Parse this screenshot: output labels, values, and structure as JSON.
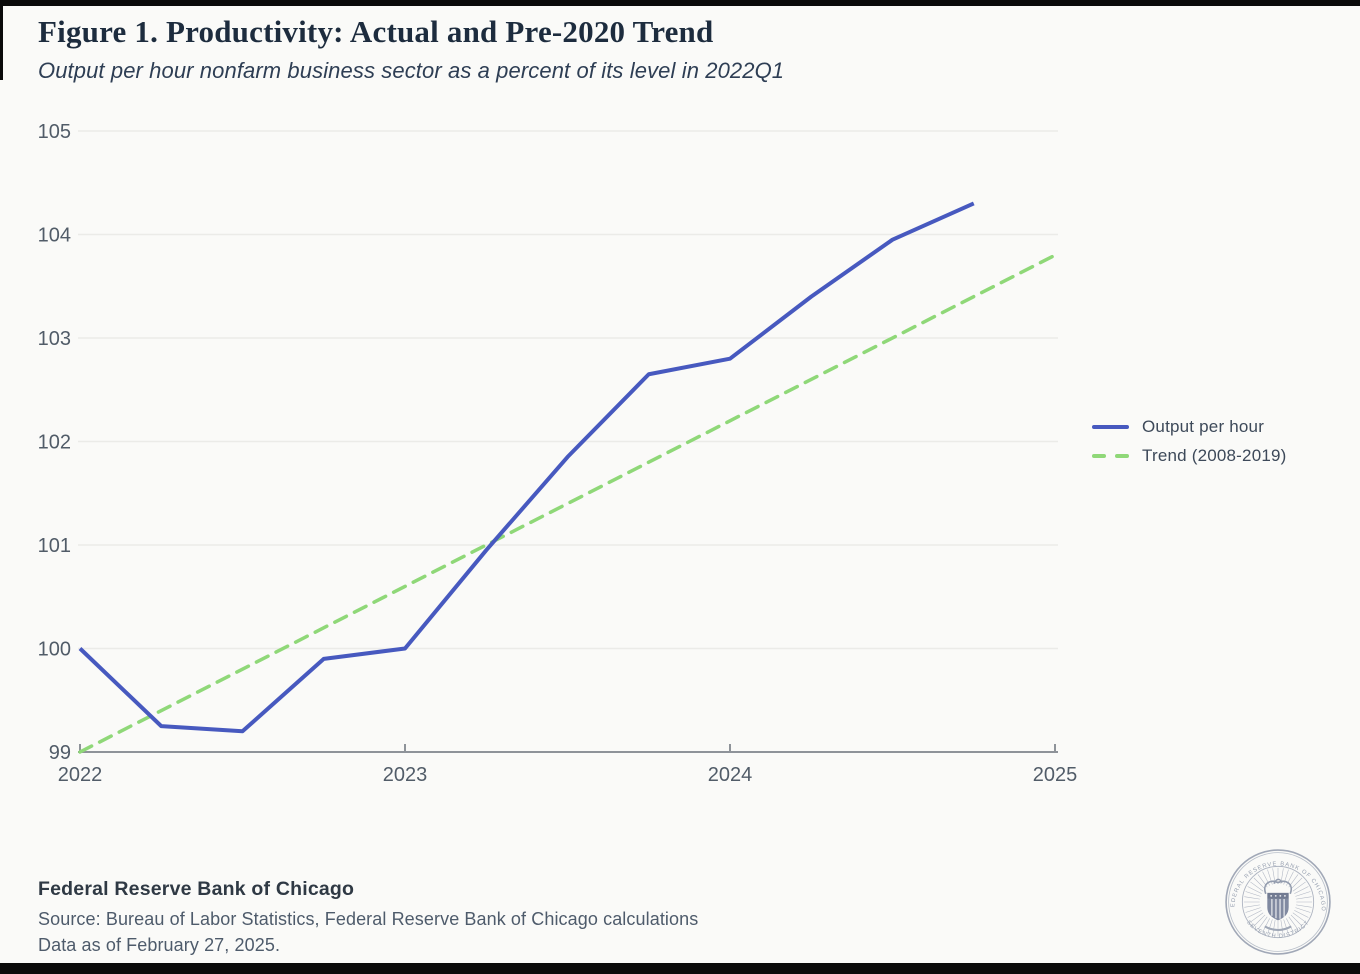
{
  "chart_data": {
    "type": "line",
    "title": "Figure 1. Productivity: Actual and Pre-2020 Trend",
    "subtitle": "Output per hour nonfarm business sector as a percent of its level in 2022Q1",
    "xlabel": "",
    "ylabel": "",
    "xlim": [
      2022,
      2025
    ],
    "ylim": [
      99,
      105
    ],
    "x_ticks": [
      2022,
      2023,
      2024,
      2025
    ],
    "x_tick_labels": [
      "2022",
      "2023",
      "2024",
      "2025"
    ],
    "y_ticks": [
      99,
      100,
      101,
      102,
      103,
      104,
      105
    ],
    "grid": true,
    "legend_position": "right-middle",
    "series": [
      {
        "name": "Output per hour",
        "style": "solid",
        "color": "#4759bf",
        "x": [
          2022.0,
          2022.25,
          2022.5,
          2022.75,
          2023.0,
          2023.25,
          2023.5,
          2023.75,
          2024.0,
          2024.25,
          2024.5,
          2024.75
        ],
        "x_labels": [
          "2022Q1",
          "2022Q2",
          "2022Q3",
          "2022Q4",
          "2023Q1",
          "2023Q2",
          "2023Q3",
          "2023Q4",
          "2024Q1",
          "2024Q2",
          "2024Q3",
          "2024Q4"
        ],
        "values": [
          100.0,
          99.25,
          99.2,
          99.9,
          100.0,
          100.95,
          101.85,
          102.65,
          102.8,
          103.4,
          103.95,
          104.3
        ]
      },
      {
        "name": "Trend (2008-2019)",
        "style": "dashed",
        "color": "#8fd878",
        "x": [
          2022.0,
          2025.0
        ],
        "values": [
          99.0,
          103.8
        ]
      }
    ]
  },
  "footer": {
    "org": "Federal Reserve Bank of Chicago",
    "source": "Source: Bureau of Labor Statistics, Federal Reserve Bank of Chicago calculations",
    "data_as_of": "Data as of February 27, 2025."
  },
  "seal": {
    "ring_text_top": "FEDERAL RESERVE BANK OF CHICAGO",
    "ring_text_bottom": "SEVENTH DISTRICT"
  }
}
